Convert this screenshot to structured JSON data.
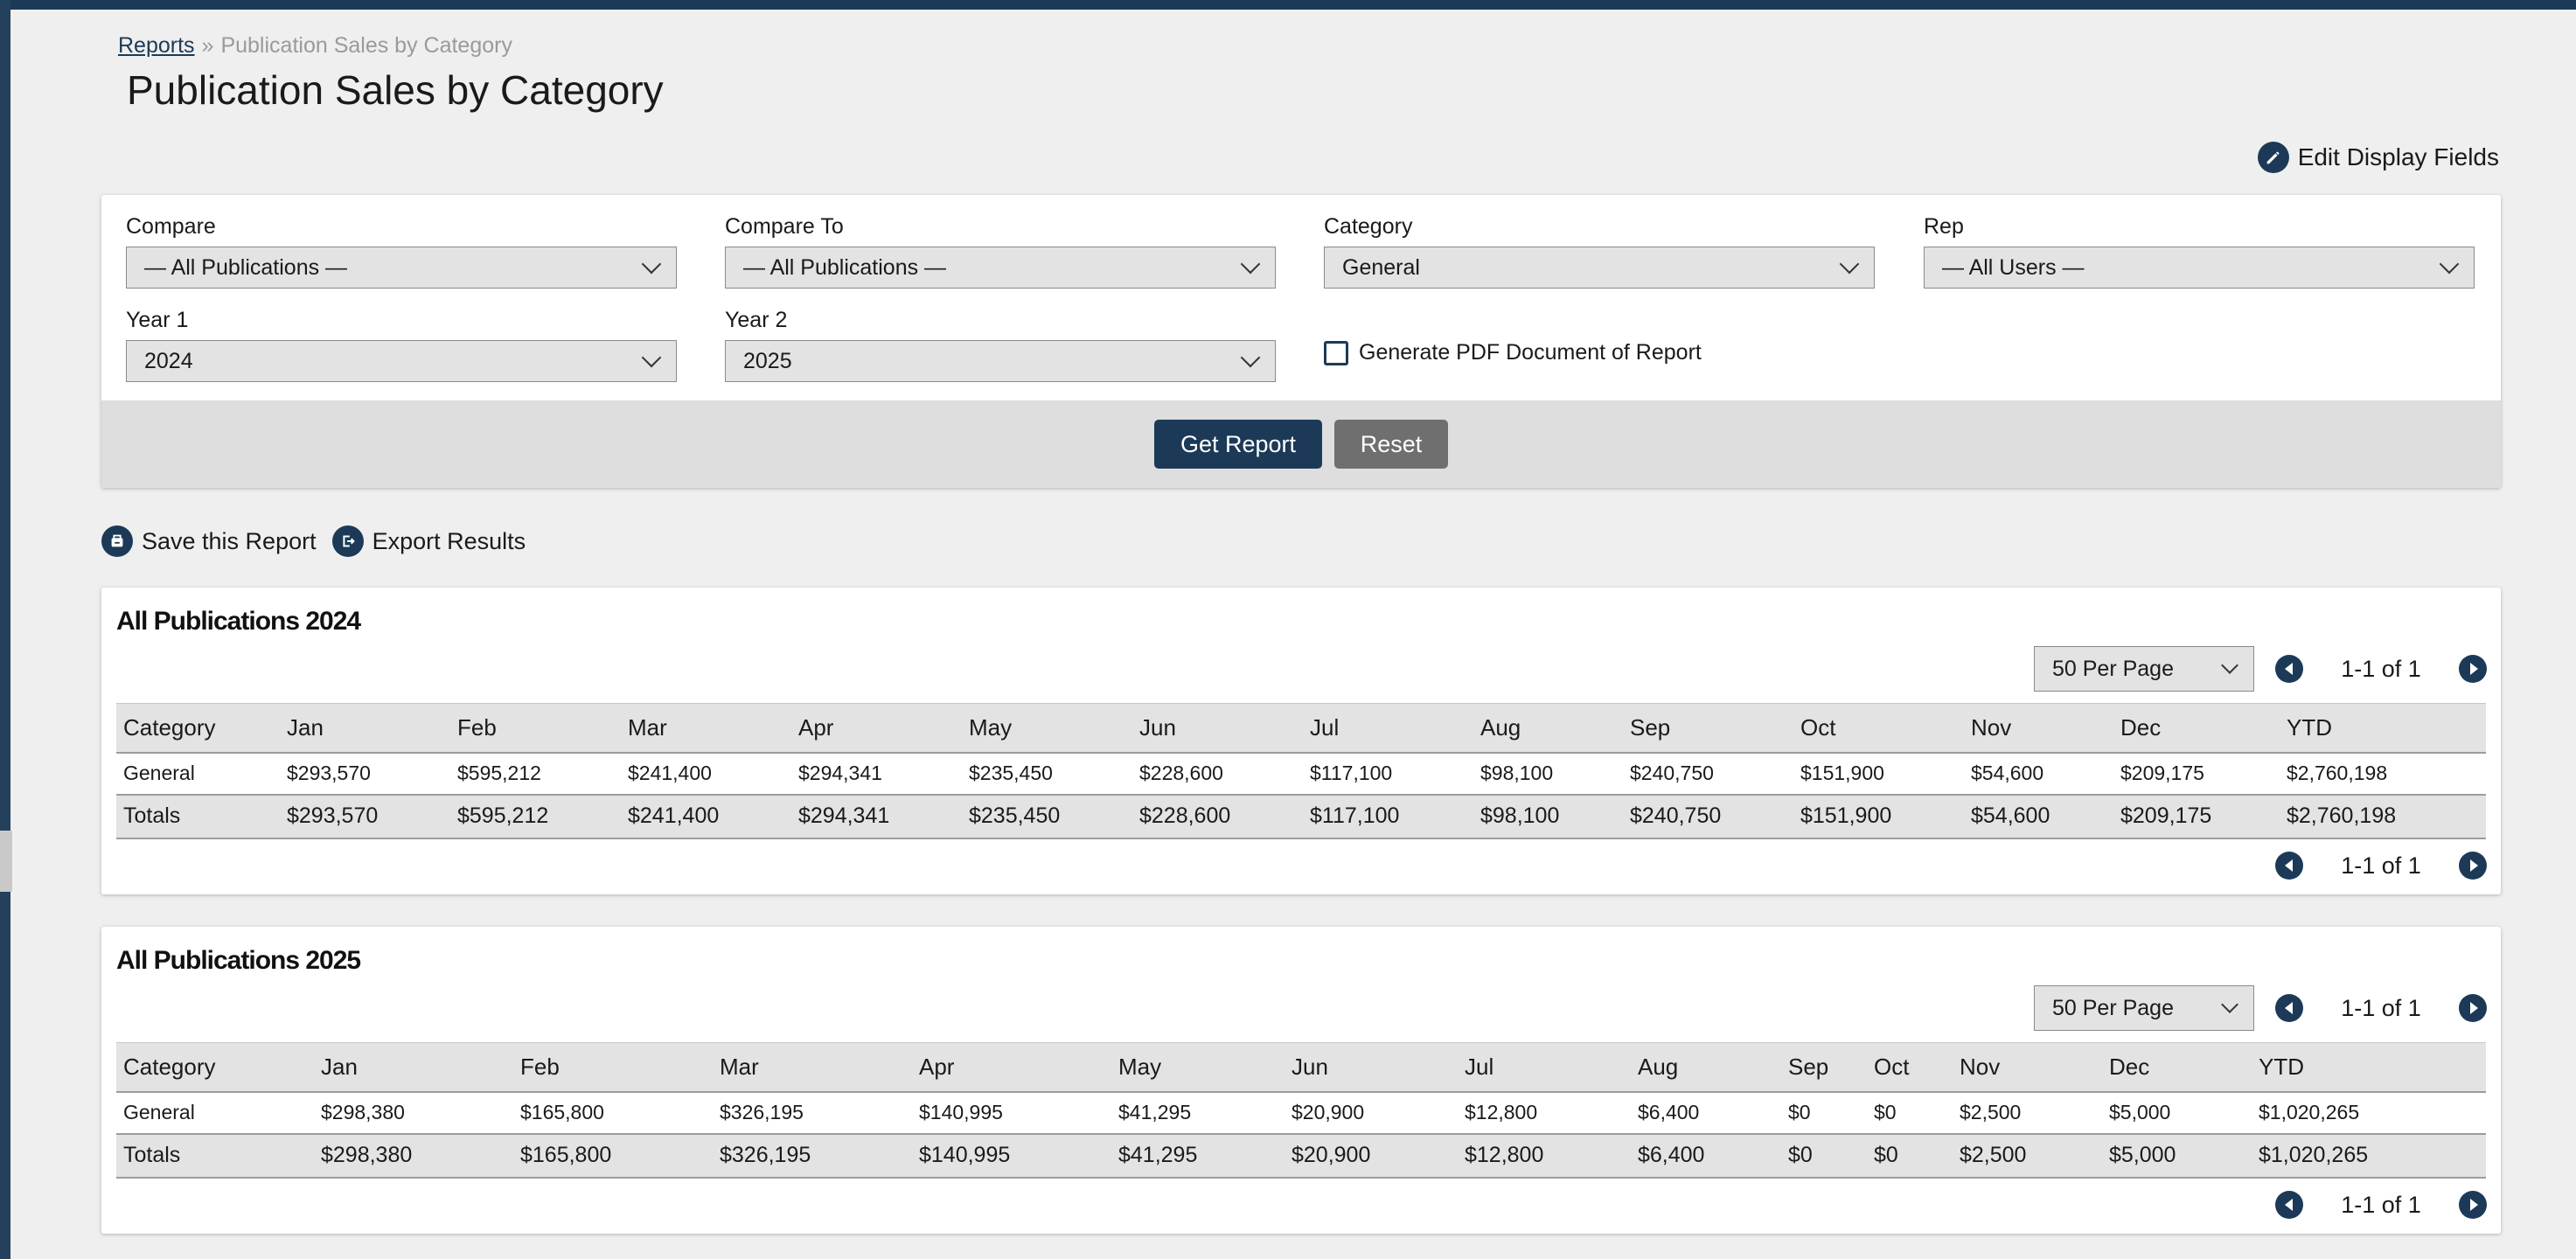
{
  "breadcrumb": {
    "link": "Reports",
    "separator": "»",
    "current": "Publication Sales by Category"
  },
  "page_title": "Publication Sales by Category",
  "edit_display_fields": "Edit Display Fields",
  "filters": {
    "compare": {
      "label": "Compare",
      "value": "— All Publications —"
    },
    "compare_to": {
      "label": "Compare To",
      "value": "— All Publications —"
    },
    "category": {
      "label": "Category",
      "value": "General"
    },
    "rep": {
      "label": "Rep",
      "value": "— All Users —"
    },
    "year1": {
      "label": "Year 1",
      "value": "2024"
    },
    "year2": {
      "label": "Year 2",
      "value": "2025"
    },
    "pdf_checkbox": {
      "label": "Generate PDF Document of Report",
      "checked": false
    }
  },
  "buttons": {
    "get_report": "Get Report",
    "reset": "Reset"
  },
  "actions": {
    "save": "Save this Report",
    "export": "Export Results"
  },
  "colors": {
    "primary": "#1c3a57",
    "reset": "#6f6f6f",
    "header_bg": "#e3e3e3"
  },
  "tables": [
    {
      "title": "All Publications 2024",
      "per_page": "50 Per Page",
      "page_info": "1-1 of 1",
      "columns": [
        "Category",
        "Jan",
        "Feb",
        "Mar",
        "Apr",
        "May",
        "Jun",
        "Jul",
        "Aug",
        "Sep",
        "Oct",
        "Nov",
        "Dec",
        "YTD"
      ],
      "rows": [
        [
          "General",
          "$293,570",
          "$595,212",
          "$241,400",
          "$294,341",
          "$235,450",
          "$228,600",
          "$117,100",
          "$98,100",
          "$240,750",
          "$151,900",
          "$54,600",
          "$209,175",
          "$2,760,198"
        ]
      ],
      "totals": [
        "Totals",
        "$293,570",
        "$595,212",
        "$241,400",
        "$294,341",
        "$235,450",
        "$228,600",
        "$117,100",
        "$98,100",
        "$240,750",
        "$151,900",
        "$54,600",
        "$209,175",
        "$2,760,198"
      ]
    },
    {
      "title": "All Publications 2025",
      "per_page": "50 Per Page",
      "page_info": "1-1 of 1",
      "columns": [
        "Category",
        "Jan",
        "Feb",
        "Mar",
        "Apr",
        "May",
        "Jun",
        "Jul",
        "Aug",
        "Sep",
        "Oct",
        "Nov",
        "Dec",
        "YTD"
      ],
      "rows": [
        [
          "General",
          "$298,380",
          "$165,800",
          "$326,195",
          "$140,995",
          "$41,295",
          "$20,900",
          "$12,800",
          "$6,400",
          "$0",
          "$0",
          "$2,500",
          "$5,000",
          "$1,020,265"
        ]
      ],
      "totals": [
        "Totals",
        "$298,380",
        "$165,800",
        "$326,195",
        "$140,995",
        "$41,295",
        "$20,900",
        "$12,800",
        "$6,400",
        "$0",
        "$0",
        "$2,500",
        "$5,000",
        "$1,020,265"
      ]
    }
  ]
}
